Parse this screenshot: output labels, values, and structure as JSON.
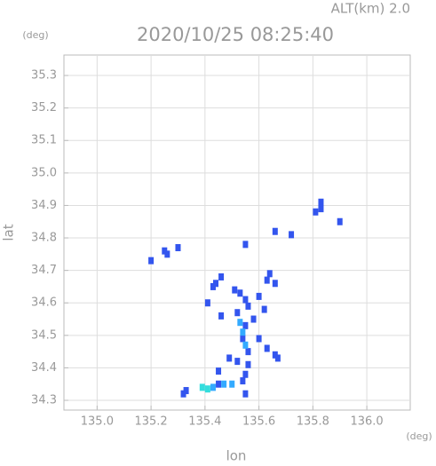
{
  "chart_data": {
    "type": "scatter",
    "title": "2020/10/25 08:25:40",
    "subtitle": "ALT(km) 2.0",
    "y_unit": "(deg)",
    "x_unit": "(deg)",
    "x_label": "lon",
    "y_label": "lat",
    "xlim": [
      134.877,
      136.161
    ],
    "ylim": [
      34.27,
      35.363
    ],
    "xticks": [
      {
        "value": 135,
        "label": "135.0"
      },
      135.2,
      135.4,
      135.6,
      135.8,
      {
        "value": 136,
        "label": "136.0"
      }
    ],
    "yticks": [
      34.3,
      34.4,
      34.5,
      34.6,
      34.7,
      34.8,
      34.9,
      {
        "value": 35,
        "label": "35.0"
      },
      35.1,
      35.2,
      35.3
    ],
    "grid": true,
    "series": [
      {
        "color": "#3355ee",
        "x": [
          135.83,
          135.81,
          135.9,
          135.83,
          135.72,
          135.66,
          135.3,
          135.26,
          135.25,
          135.2,
          135.55,
          135.64,
          135.63,
          135.66,
          135.46,
          135.43,
          135.44,
          135.51,
          135.53,
          135.55,
          135.6,
          135.62,
          135.56,
          135.58,
          135.52,
          135.55,
          135.54,
          135.56,
          135.6,
          135.63,
          135.66,
          135.67,
          135.52,
          135.56,
          135.49,
          135.41,
          135.46,
          135.45,
          135.55,
          135.54,
          135.45,
          135.33,
          135.32,
          135.55
        ],
        "y": [
          34.91,
          34.88,
          34.85,
          34.89,
          34.81,
          34.82,
          34.77,
          34.75,
          34.76,
          34.73,
          34.78,
          34.69,
          34.67,
          34.66,
          34.68,
          34.65,
          34.66,
          34.64,
          34.63,
          34.61,
          34.62,
          34.58,
          34.59,
          34.55,
          34.57,
          34.53,
          34.49,
          34.45,
          34.49,
          34.46,
          34.44,
          34.43,
          34.42,
          34.41,
          34.43,
          34.6,
          34.56,
          34.39,
          34.38,
          34.36,
          34.35,
          34.33,
          34.32,
          34.32
        ]
      },
      {
        "color": "#33aaff",
        "x": [
          135.54,
          135.55,
          135.53,
          135.47,
          135.5,
          135.43
        ],
        "y": [
          34.51,
          34.47,
          34.54,
          34.35,
          34.35,
          34.34
        ]
      },
      {
        "color": "#33dddd",
        "x": [
          135.39,
          135.41
        ],
        "y": [
          34.34,
          34.335
        ]
      }
    ]
  }
}
